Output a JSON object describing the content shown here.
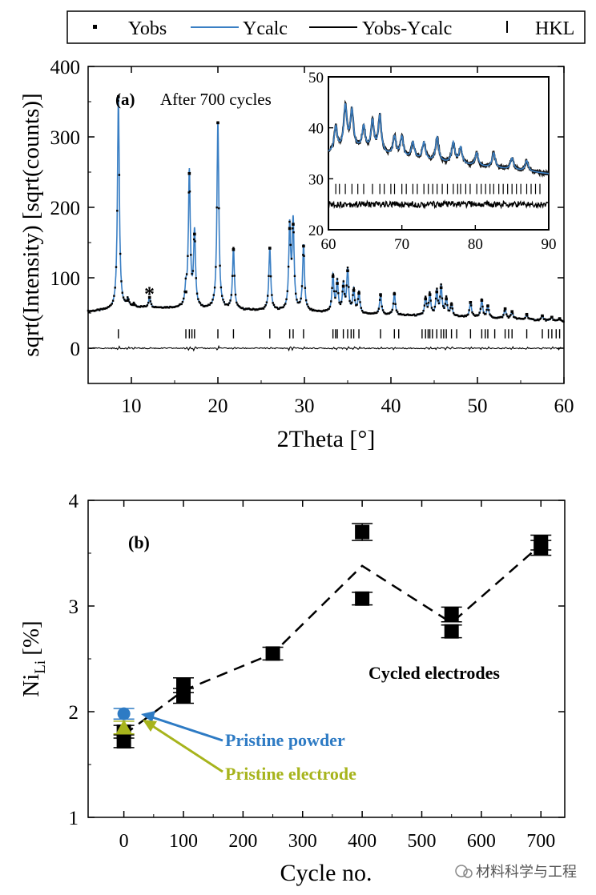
{
  "chart_data": [
    {
      "type": "line",
      "panel_label": "(a)",
      "annotation": "After 700 cycles",
      "marker_annotation": "*",
      "xlabel": "2Theta [°]",
      "ylabel": "sqrt(Intensity) [sqrt(counts)]",
      "xlim": [
        5,
        60
      ],
      "ylim": [
        -50,
        400
      ],
      "xticks": [
        "10",
        "20",
        "30",
        "40",
        "50",
        "60"
      ],
      "yticks": [
        "0",
        "100",
        "200",
        "300",
        "400"
      ],
      "legend": {
        "placement": "top",
        "entries": [
          {
            "label": "Yobs",
            "symbol": "dot",
            "color": "#000000"
          },
          {
            "label": "Ycalc",
            "symbol": "line",
            "color": "#3a7fc4"
          },
          {
            "label": "Yobs-Ycalc",
            "symbol": "line",
            "color": "#000000"
          },
          {
            "label": "HKL",
            "symbol": "tick",
            "color": "#000000"
          }
        ]
      },
      "background": [
        [
          5,
          52
        ],
        [
          8,
          55
        ],
        [
          10,
          58
        ],
        [
          15,
          57
        ],
        [
          20,
          55
        ],
        [
          30,
          52
        ],
        [
          40,
          47
        ],
        [
          50,
          44
        ],
        [
          60,
          38
        ]
      ],
      "peaks": [
        {
          "x": 8.5,
          "y": 357
        },
        {
          "x": 9.6,
          "y": 68
        },
        {
          "x": 10.3,
          "y": 62
        },
        {
          "x": 12.1,
          "y": 72
        },
        {
          "x": 16.7,
          "y": 248
        },
        {
          "x": 17.3,
          "y": 162
        },
        {
          "x": 16.3,
          "y": 80
        },
        {
          "x": 20.0,
          "y": 320
        },
        {
          "x": 21.8,
          "y": 140
        },
        {
          "x": 26.0,
          "y": 142
        },
        {
          "x": 28.3,
          "y": 170
        },
        {
          "x": 28.7,
          "y": 176
        },
        {
          "x": 29.9,
          "y": 145
        },
        {
          "x": 33.3,
          "y": 102
        },
        {
          "x": 33.8,
          "y": 92
        },
        {
          "x": 34.5,
          "y": 88
        },
        {
          "x": 35.0,
          "y": 110
        },
        {
          "x": 35.7,
          "y": 82
        },
        {
          "x": 36.3,
          "y": 78
        },
        {
          "x": 38.8,
          "y": 76
        },
        {
          "x": 40.4,
          "y": 77
        },
        {
          "x": 44.0,
          "y": 70
        },
        {
          "x": 44.5,
          "y": 76
        },
        {
          "x": 45.3,
          "y": 80
        },
        {
          "x": 45.8,
          "y": 86
        },
        {
          "x": 46.4,
          "y": 70
        },
        {
          "x": 47.0,
          "y": 62
        },
        {
          "x": 49.2,
          "y": 65
        },
        {
          "x": 50.5,
          "y": 68
        },
        {
          "x": 51.2,
          "y": 60
        },
        {
          "x": 53.2,
          "y": 56
        },
        {
          "x": 54.0,
          "y": 52
        },
        {
          "x": 55.7,
          "y": 48
        },
        {
          "x": 57.5,
          "y": 46
        },
        {
          "x": 58.6,
          "y": 44
        },
        {
          "x": 59.5,
          "y": 42
        }
      ],
      "hkl_positions": [
        8.5,
        16.3,
        16.7,
        17.0,
        17.3,
        20.0,
        21.8,
        26.0,
        28.3,
        28.7,
        29.9,
        33.3,
        33.6,
        33.8,
        34.5,
        35.0,
        35.4,
        35.7,
        36.3,
        38.8,
        40.4,
        40.9,
        43.6,
        44.0,
        44.3,
        44.5,
        44.8,
        45.3,
        45.8,
        46.1,
        46.4,
        47.0,
        47.6,
        49.2,
        50.5,
        50.9,
        51.2,
        52.0,
        53.2,
        53.6,
        54.0,
        55.7,
        57.5,
        58.2,
        58.6,
        59.1,
        59.5
      ],
      "inset": {
        "xlim": [
          60,
          90
        ],
        "ylim": [
          20,
          50
        ],
        "xticks": [
          "60",
          "70",
          "80",
          "90"
        ],
        "yticks": [
          "20",
          "30",
          "40",
          "50"
        ],
        "background": [
          [
            60,
            35
          ],
          [
            63,
            36
          ],
          [
            70,
            34
          ],
          [
            80,
            32.5
          ],
          [
            90,
            31
          ]
        ],
        "peaks": [
          {
            "x": 61.0,
            "y": 40
          },
          {
            "x": 62.3,
            "y": 44
          },
          {
            "x": 63.2,
            "y": 43
          },
          {
            "x": 64.8,
            "y": 40
          },
          {
            "x": 66.0,
            "y": 41
          },
          {
            "x": 67.0,
            "y": 42
          },
          {
            "x": 69.0,
            "y": 38
          },
          {
            "x": 70.0,
            "y": 38
          },
          {
            "x": 71.5,
            "y": 37
          },
          {
            "x": 73.0,
            "y": 37
          },
          {
            "x": 74.8,
            "y": 38
          },
          {
            "x": 77.0,
            "y": 37
          },
          {
            "x": 78.0,
            "y": 36
          },
          {
            "x": 80.2,
            "y": 35
          },
          {
            "x": 82.5,
            "y": 35
          },
          {
            "x": 85.0,
            "y": 34
          },
          {
            "x": 87.0,
            "y": 33.5
          }
        ],
        "hkl_y": 28,
        "hkl_positions": [
          61.0,
          61.5,
          62.3,
          63.2,
          64.0,
          64.8,
          66.0,
          67.0,
          67.6,
          68.5,
          69.0,
          70.0,
          70.6,
          71.5,
          72.1,
          73.0,
          73.6,
          74.2,
          74.8,
          75.5,
          76.2,
          77.0,
          77.6,
          78.0,
          78.7,
          79.3,
          80.2,
          80.8,
          81.4,
          82.0,
          82.5,
          83.2,
          83.8,
          84.4,
          85.0,
          85.6,
          86.2,
          87.0,
          87.6,
          88.2,
          88.8
        ],
        "diff_y": 25
      }
    },
    {
      "type": "scatter",
      "panel_label": "(b)",
      "xlabel": "Cycle no.",
      "ylabel_main": "Ni",
      "ylabel_sub": "Li",
      "ylabel_unit": "[%]",
      "xlim": [
        -60,
        740
      ],
      "ylim": [
        1,
        4
      ],
      "xticks": [
        "0",
        "100",
        "200",
        "300",
        "400",
        "500",
        "600",
        "700"
      ],
      "yticks": [
        "1",
        "2",
        "3",
        "4"
      ],
      "series": [
        {
          "name": "Cycled electrodes",
          "color": "#000000",
          "marker": "square",
          "points": [
            {
              "x": 0,
              "y": 1.72,
              "err": 0.06
            },
            {
              "x": 0,
              "y": 1.81,
              "err": 0.06
            },
            {
              "x": 100,
              "y": 2.15,
              "err": 0.07
            },
            {
              "x": 100,
              "y": 2.25,
              "err": 0.07
            },
            {
              "x": 250,
              "y": 2.55,
              "err": 0.06
            },
            {
              "x": 400,
              "y": 3.7,
              "err": 0.08
            },
            {
              "x": 400,
              "y": 3.07,
              "err": 0.06
            },
            {
              "x": 550,
              "y": 2.92,
              "err": 0.07
            },
            {
              "x": 550,
              "y": 2.76,
              "err": 0.06
            },
            {
              "x": 700,
              "y": 3.55,
              "err": 0.07
            },
            {
              "x": 700,
              "y": 3.6,
              "err": 0.07
            }
          ],
          "trend_line": [
            [
              0,
              1.78
            ],
            [
              100,
              2.2
            ],
            [
              250,
              2.55
            ],
            [
              400,
              3.38
            ],
            [
              550,
              2.84
            ],
            [
              700,
              3.58
            ]
          ]
        },
        {
          "name": "Pristine powder",
          "color": "#2e7bc4",
          "marker": "circle",
          "points": [
            {
              "x": 0,
              "y": 1.98,
              "err": 0.05
            }
          ]
        },
        {
          "name": "Pristine electrode",
          "color": "#a7b41c",
          "marker": "triangle",
          "points": [
            {
              "x": 0,
              "y": 1.85,
              "err": 0.06
            }
          ]
        }
      ]
    }
  ],
  "watermark": "材料科学与工程"
}
